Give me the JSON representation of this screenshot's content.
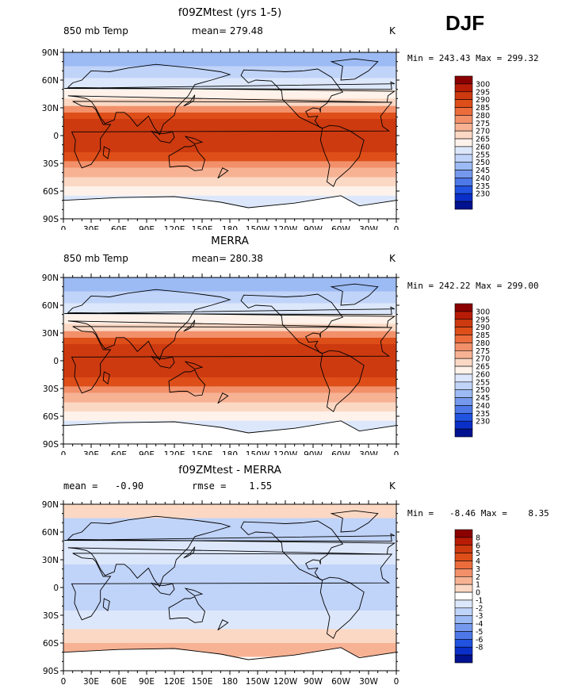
{
  "season_label": "DJF",
  "panels": [
    {
      "title": "f09ZMtest (yrs 1-5)",
      "left_label": "850 mb Temp",
      "center_label": "mean= 279.48",
      "right_label": "K",
      "minmax": "Min = 243.43 Max = 299.32",
      "palette": "temperature",
      "levels": [
        "300",
        "295",
        "290",
        "285",
        "280",
        "275",
        "270",
        "265",
        "260",
        "255",
        "250",
        "245",
        "240",
        "235",
        "230"
      ]
    },
    {
      "title": "MERRA",
      "left_label": "850 mb Temp",
      "center_label": "mean= 280.38",
      "right_label": "K",
      "minmax": "Min = 242.22 Max = 299.00",
      "palette": "temperature",
      "levels": [
        "300",
        "295",
        "290",
        "285",
        "280",
        "275",
        "270",
        "265",
        "260",
        "255",
        "250",
        "245",
        "240",
        "235",
        "230"
      ]
    },
    {
      "title": "f09ZMtest - MERRA",
      "left_label": "mean =   -0.90",
      "center_label": "rmse =    1.55",
      "right_label": "K",
      "minmax": "Min =   -8.46 Max =    8.35",
      "palette": "difference",
      "levels": [
        "8",
        "6",
        "5",
        "4",
        "3",
        "2",
        "1",
        "0",
        "-1",
        "-2",
        "-3",
        "-4",
        "-5",
        "-6",
        "-8"
      ]
    }
  ],
  "colors": {
    "temperature": [
      "#8b0000",
      "#b81c06",
      "#cd3a10",
      "#de4e19",
      "#ec6c3c",
      "#f2906a",
      "#f7b294",
      "#fbd8c4",
      "#fef2ea",
      "#dce7fb",
      "#c0d3f8",
      "#9cbaf3",
      "#7599ed",
      "#4e78e7",
      "#2152e0",
      "#0a2fc9",
      "#00128f"
    ],
    "difference": [
      "#8b0000",
      "#b81c06",
      "#cd3a10",
      "#de4e19",
      "#ec6c3c",
      "#f2906a",
      "#f7b294",
      "#fbd8c4",
      "#ffffff",
      "#dce7fb",
      "#c0d3f8",
      "#9cbaf3",
      "#7599ed",
      "#4e78e7",
      "#2152e0",
      "#0a2fc9",
      "#00128f"
    ]
  },
  "lat_ticks": [
    "90N",
    "60N",
    "30N",
    "0",
    "30S",
    "60S",
    "90S"
  ],
  "lon_ticks": [
    "0",
    "30E",
    "60E",
    "90E",
    "120E",
    "150E",
    "180",
    "150W",
    "120W",
    "90W",
    "60W",
    "30W",
    "0"
  ]
}
